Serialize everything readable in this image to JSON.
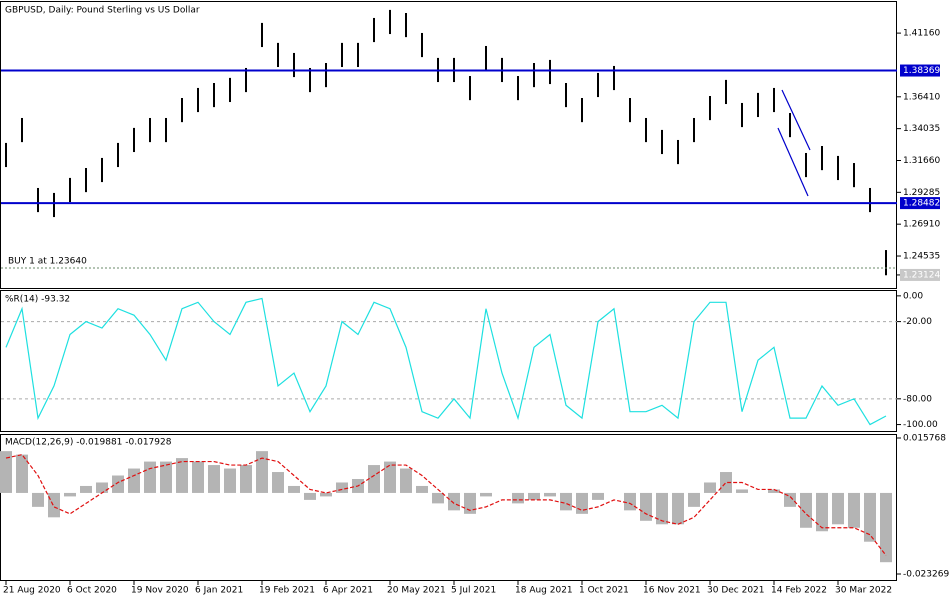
{
  "chart_data": [
    {
      "type": "range",
      "title": "GBPUSD, Daily:  Pound Sterling vs US Dollar",
      "ylim": [
        1.2215,
        1.4348
      ],
      "yticks": [
        {
          "value": 1.4116,
          "label": "1.41160"
        },
        {
          "value": 1.3641,
          "label": "1.36410"
        },
        {
          "value": 1.34035,
          "label": "1.34035"
        },
        {
          "value": 1.3166,
          "label": "1.31660"
        },
        {
          "value": 1.29285,
          "label": "1.29285"
        },
        {
          "value": 1.2691,
          "label": "1.26910"
        },
        {
          "value": 1.24535,
          "label": "1.24535"
        }
      ],
      "color": "#000000",
      "series": [
        {
          "name": "High",
          "values": [
            1.3297,
            1.3483,
            1.2961,
            1.2924,
            1.3036,
            1.311,
            1.3185,
            1.3297,
            1.3409,
            1.3483,
            1.3483,
            1.3632,
            1.3707,
            1.3744,
            1.3782,
            1.3856,
            1.4192,
            1.4043,
            1.3968,
            1.3856,
            1.3893,
            1.4043,
            1.4043,
            1.4229,
            1.4289,
            1.4266,
            1.4117,
            1.3931,
            1.3931,
            1.3796,
            1.402,
            1.3931,
            1.3796,
            1.3893,
            1.3916,
            1.3744,
            1.3632,
            1.3819,
            1.3871,
            1.3632,
            1.3483,
            1.3394,
            1.3319,
            1.3483,
            1.3647,
            1.3767,
            1.3595,
            1.367,
            1.3707,
            1.352,
            1.3222,
            1.3274,
            1.32,
            1.3147,
            1.2961,
            1.2498
          ]
        },
        {
          "name": "Low",
          "values": [
            1.3117,
            1.3303,
            1.2781,
            1.2744,
            1.2856,
            1.293,
            1.3005,
            1.3117,
            1.3229,
            1.3303,
            1.3303,
            1.3452,
            1.3527,
            1.3564,
            1.3602,
            1.3676,
            1.4012,
            1.3863,
            1.3788,
            1.3676,
            1.3713,
            1.3863,
            1.3863,
            1.4049,
            1.4109,
            1.4086,
            1.3937,
            1.3751,
            1.3751,
            1.3616,
            1.384,
            1.3751,
            1.3616,
            1.3713,
            1.3736,
            1.3564,
            1.3452,
            1.3639,
            1.3691,
            1.3452,
            1.3303,
            1.3214,
            1.3139,
            1.3303,
            1.3467,
            1.3587,
            1.3415,
            1.349,
            1.3527,
            1.334,
            1.3042,
            1.3094,
            1.302,
            1.2967,
            1.2781,
            1.231
          ]
        }
      ],
      "hlines": [
        {
          "value": 1.38369,
          "label": "1.38369",
          "color": "#0000cc"
        },
        {
          "value": 1.28482,
          "label": "1.28482",
          "color": "#0000cc"
        }
      ],
      "order": {
        "text": "BUY 1 at 1.23640",
        "value": 1.2364
      },
      "last": {
        "value": 1.23124,
        "label": "1.23124"
      }
    },
    {
      "type": "line",
      "title": "%R(14) -93.32",
      "ylim": [
        -105,
        3
      ],
      "yticks": [
        {
          "value": 0,
          "label": "0.00"
        },
        {
          "value": -20,
          "label": "-20.00"
        },
        {
          "value": -80,
          "label": "-80.00"
        },
        {
          "value": -100,
          "label": "-100.00"
        }
      ],
      "levels": [
        -20,
        -80
      ],
      "series": [
        {
          "name": "%R",
          "color": "#1ee0e0",
          "values": [
            -40,
            -10,
            -95,
            -70,
            -30,
            -20,
            -25,
            -10,
            -15,
            -30,
            -50,
            -10,
            -5,
            -20,
            -30,
            -5,
            -2,
            -70,
            -60,
            -90,
            -70,
            -20,
            -30,
            -5,
            -10,
            -40,
            -90,
            -95,
            -80,
            -95,
            -10,
            -60,
            -95,
            -40,
            -30,
            -85,
            -95,
            -20,
            -10,
            -90,
            -90,
            -85,
            -95,
            -20,
            -5,
            -5,
            -90,
            -50,
            -40,
            -95,
            -95,
            -70,
            -85,
            -80,
            -100,
            -93.32
          ]
        }
      ]
    },
    {
      "type": "macd",
      "title": "MACD(12,26,9) -0.019881 -0.017928",
      "ylim": [
        -0.023269,
        0.015768
      ],
      "yticks": [
        0.015768,
        -0.023269
      ],
      "categories": [
        "21 Aug 2020",
        null,
        null,
        null,
        "6 Oct 2020",
        null,
        null,
        null,
        "19 Nov 2020",
        null,
        null,
        null,
        "6 Jan 2021",
        null,
        null,
        null,
        "19 Feb 2021",
        null,
        null,
        null,
        "6 Apr 2021",
        null,
        null,
        null,
        "20 May 2021",
        null,
        null,
        null,
        "5 Jul 2021",
        null,
        null,
        null,
        "18 Aug 2021",
        null,
        null,
        null,
        "1 Oct 2021",
        null,
        null,
        null,
        "16 Nov 2021",
        null,
        null,
        null,
        "30 Dec 2021",
        null,
        null,
        null,
        "14 Feb 2022",
        null,
        null,
        null,
        "30 Mar 2022",
        null,
        null,
        null
      ],
      "series": [
        {
          "name": "MACD",
          "color": "#b4b4b4",
          "values": [
            0.012,
            0.011,
            -0.004,
            -0.007,
            -0.001,
            0.002,
            0.003,
            0.005,
            0.007,
            0.009,
            0.009,
            0.01,
            0.009,
            0.008,
            0.007,
            0.008,
            0.012,
            0.006,
            0.002,
            -0.002,
            -0.001,
            0.003,
            0.004,
            0.008,
            0.009,
            0.007,
            0.002,
            -0.003,
            -0.005,
            -0.006,
            -0.001,
            0.0,
            -0.003,
            -0.002,
            -0.001,
            -0.005,
            -0.006,
            -0.002,
            0.0,
            -0.005,
            -0.008,
            -0.009,
            -0.009,
            -0.004,
            0.003,
            0.006,
            0.001,
            0.0,
            0.001,
            -0.004,
            -0.01,
            -0.011,
            -0.009,
            -0.01,
            -0.014,
            -0.019881
          ]
        },
        {
          "name": "Signal",
          "color": "#e01010",
          "values": [
            0.01,
            0.011,
            0.005,
            -0.004,
            -0.006,
            -0.003,
            0.0,
            0.003,
            0.005,
            0.007,
            0.008,
            0.009,
            0.009,
            0.009,
            0.008,
            0.008,
            0.01,
            0.009,
            0.005,
            0.001,
            0.0,
            0.001,
            0.002,
            0.005,
            0.008,
            0.008,
            0.005,
            0.001,
            -0.003,
            -0.005,
            -0.004,
            -0.002,
            -0.002,
            -0.002,
            -0.002,
            -0.003,
            -0.005,
            -0.004,
            -0.002,
            -0.003,
            -0.006,
            -0.008,
            -0.009,
            -0.007,
            -0.002,
            0.003,
            0.003,
            0.001,
            0.001,
            -0.001,
            -0.006,
            -0.01,
            -0.01,
            -0.01,
            -0.012,
            -0.017928
          ]
        }
      ]
    }
  ]
}
